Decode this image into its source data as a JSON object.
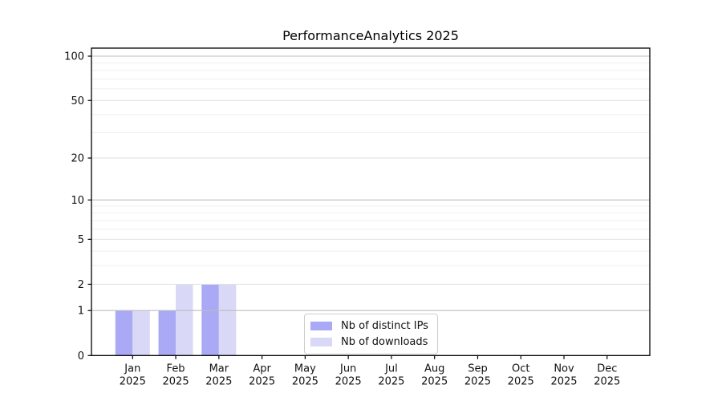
{
  "title": "PerformanceAnalytics 2025",
  "chart_data": {
    "type": "bar",
    "title": "PerformanceAnalytics 2025",
    "xlabel": "",
    "ylabel": "",
    "yscale": "log1p",
    "ylim": [
      0,
      113
    ],
    "grid": true,
    "legend_position": "inside-bottom-center",
    "ytick_labels": [
      0,
      1,
      2,
      5,
      10,
      20,
      50,
      100
    ],
    "minor_gridlines": [
      3,
      4,
      6,
      7,
      8,
      9,
      30,
      40,
      60,
      70,
      80,
      90
    ],
    "categories": [
      {
        "month": "Jan",
        "year": "2025"
      },
      {
        "month": "Feb",
        "year": "2025"
      },
      {
        "month": "Mar",
        "year": "2025"
      },
      {
        "month": "Apr",
        "year": "2025"
      },
      {
        "month": "May",
        "year": "2025"
      },
      {
        "month": "Jun",
        "year": "2025"
      },
      {
        "month": "Jul",
        "year": "2025"
      },
      {
        "month": "Aug",
        "year": "2025"
      },
      {
        "month": "Sep",
        "year": "2025"
      },
      {
        "month": "Oct",
        "year": "2025"
      },
      {
        "month": "Nov",
        "year": "2025"
      },
      {
        "month": "Dec",
        "year": "2025"
      }
    ],
    "series": [
      {
        "name": "Nb of distinct IPs",
        "color": "#a9a9f5",
        "values": [
          1,
          1,
          2,
          0,
          0,
          0,
          0,
          0,
          0,
          0,
          0,
          0
        ]
      },
      {
        "name": "Nb of downloads",
        "color": "#d9d9f7",
        "values": [
          1,
          2,
          2,
          0,
          0,
          0,
          0,
          0,
          0,
          0,
          0,
          0
        ]
      }
    ],
    "colors": {
      "decade_gridline": "#bdbdbd",
      "mid_gridline": "#e2e2e2",
      "minor_gridline": "#efefef",
      "axis": "#000000",
      "tick_label": "#111111"
    }
  }
}
